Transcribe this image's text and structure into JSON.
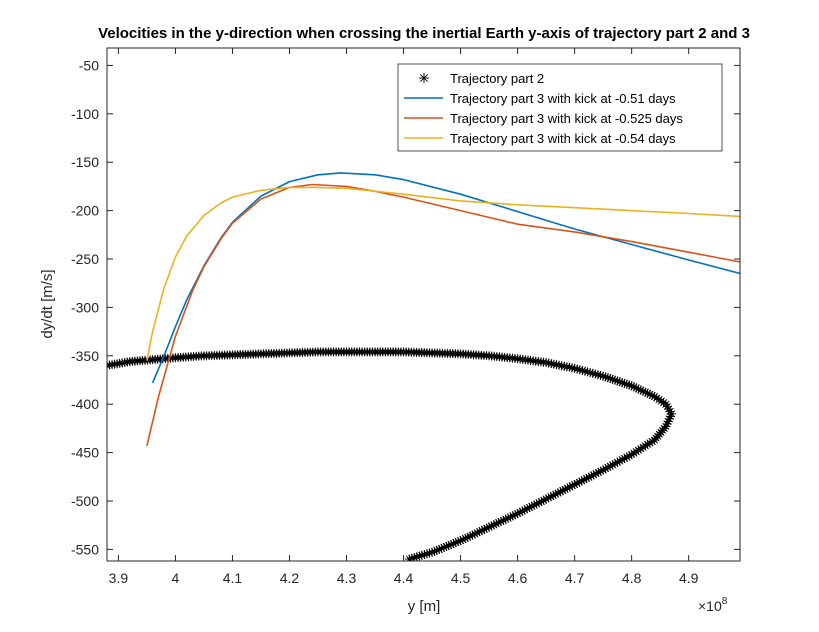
{
  "chart_data": {
    "type": "line",
    "title": "Velocities in the y-direction when crossing the inertial Earth y-axis of trajectory part 2 and 3",
    "xlabel": "y [m]",
    "ylabel": "dy/dt [m/s]",
    "x_exponent_label": "×10",
    "x_exponent_power": "8",
    "xlim": [
      3.88,
      4.99
    ],
    "ylim": [
      -562,
      -32
    ],
    "x_ticks": [
      3.9,
      4.0,
      4.1,
      4.2,
      4.3,
      4.4,
      4.5,
      4.6,
      4.7,
      4.8,
      4.9
    ],
    "x_tick_labels": [
      "3.9",
      "4",
      "4.1",
      "4.2",
      "4.3",
      "4.4",
      "4.5",
      "4.6",
      "4.7",
      "4.8",
      "4.9"
    ],
    "y_ticks": [
      -550,
      -500,
      -450,
      -400,
      -350,
      -300,
      -250,
      -200,
      -150,
      -100,
      -50
    ],
    "y_tick_labels": [
      "-550",
      "-500",
      "-450",
      "-400",
      "-350",
      "-300",
      "-250",
      "-200",
      "-150",
      "-100",
      "-50"
    ],
    "grid": false,
    "legend_position": "top-right",
    "series": [
      {
        "name": "Trajectory part 2",
        "style": "marker",
        "marker": "*",
        "color": "#000000",
        "x": [
          3.88,
          3.92,
          3.96,
          4.0,
          4.05,
          4.1,
          4.15,
          4.2,
          4.25,
          4.3,
          4.35,
          4.4,
          4.45,
          4.5,
          4.55,
          4.6,
          4.65,
          4.7,
          4.75,
          4.8,
          4.84,
          4.86,
          4.87,
          4.86,
          4.84,
          4.8,
          4.75,
          4.7,
          4.65,
          4.6,
          4.55,
          4.5,
          4.45,
          4.41
        ],
        "y": [
          -360,
          -356,
          -354,
          -352,
          -350,
          -349,
          -348,
          -347,
          -346,
          -346,
          -346,
          -346,
          -347,
          -348,
          -350,
          -353,
          -357,
          -363,
          -371,
          -381,
          -392,
          -400,
          -410,
          -423,
          -437,
          -452,
          -468,
          -483,
          -498,
          -513,
          -527,
          -541,
          -553,
          -560
        ]
      },
      {
        "name": "Trajectory part 3 with kick at -0.51 days",
        "style": "line",
        "color": "#0072BD",
        "x": [
          3.96,
          3.98,
          4.0,
          4.02,
          4.05,
          4.08,
          4.1,
          4.15,
          4.2,
          4.25,
          4.29,
          4.35,
          4.4,
          4.5,
          4.6,
          4.7,
          4.8,
          4.9,
          4.99
        ],
        "y": [
          -378,
          -350,
          -320,
          -292,
          -257,
          -228,
          -212,
          -185,
          -170,
          -163,
          -161,
          -163,
          -168,
          -183,
          -201,
          -219,
          -235,
          -251,
          -265
        ]
      },
      {
        "name": "Trajectory part 3 with kick at -0.525 days",
        "style": "line",
        "color": "#D95319",
        "x": [
          3.95,
          3.97,
          4.0,
          4.03,
          4.05,
          4.08,
          4.1,
          4.15,
          4.2,
          4.24,
          4.3,
          4.35,
          4.4,
          4.5,
          4.6,
          4.7,
          4.8,
          4.9,
          4.99
        ],
        "y": [
          -443,
          -393,
          -330,
          -283,
          -258,
          -229,
          -213,
          -188,
          -176,
          -173,
          -175,
          -180,
          -186,
          -200,
          -214,
          -222,
          -232,
          -243,
          -253
        ]
      },
      {
        "name": "Trajectory part 3 with kick at -0.54 days",
        "style": "line",
        "color": "#EDB120",
        "x": [
          3.95,
          3.96,
          3.98,
          4.0,
          4.02,
          4.05,
          4.08,
          4.1,
          4.15,
          4.2,
          4.25,
          4.3,
          4.4,
          4.5,
          4.6,
          4.7,
          4.8,
          4.9,
          4.99
        ],
        "y": [
          -355,
          -325,
          -280,
          -248,
          -226,
          -205,
          -192,
          -186,
          -179,
          -176,
          -176,
          -177,
          -183,
          -190,
          -194,
          -197,
          -200,
          -203,
          -206
        ]
      }
    ]
  }
}
